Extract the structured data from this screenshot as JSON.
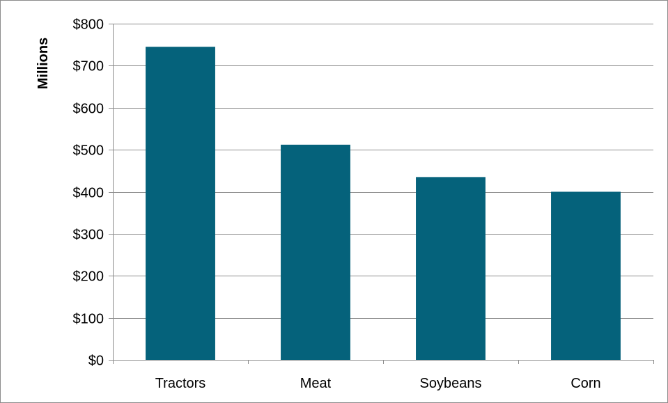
{
  "chart_data": {
    "type": "bar",
    "title": "",
    "xlabel": "",
    "ylabel": "Millions",
    "categories": [
      "Tractors",
      "Meat",
      "Soybeans",
      "Corn"
    ],
    "values": [
      745,
      512,
      435,
      400
    ],
    "ylim": [
      0,
      800
    ],
    "yticks": [
      0,
      100,
      200,
      300,
      400,
      500,
      600,
      700,
      800
    ],
    "ytick_labels": [
      "$0",
      "$100",
      "$200",
      "$300",
      "$400",
      "$500",
      "$600",
      "$700",
      "$800"
    ],
    "grid": true,
    "legend": "none",
    "bar_color": "#05627b",
    "grid_color": "#8c8c8c"
  }
}
